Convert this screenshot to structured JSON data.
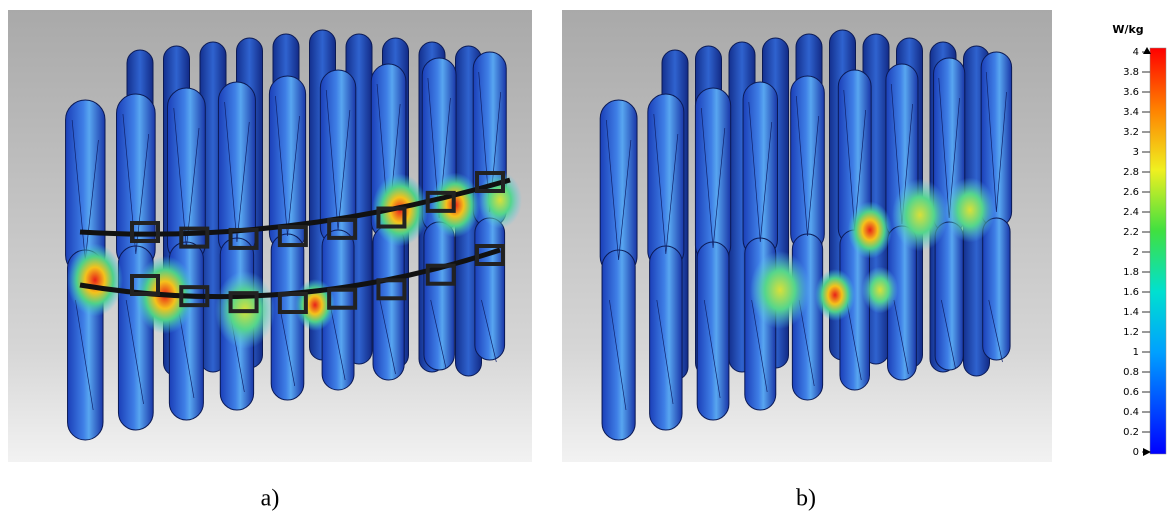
{
  "panels": [
    {
      "caption": "a)"
    },
    {
      "caption": "b)"
    }
  ],
  "colorbar": {
    "title": "W/kg",
    "range": [
      0,
      4
    ],
    "ticks": [
      0,
      0.2,
      0.4,
      0.6,
      0.8,
      1,
      1.2,
      1.4,
      1.6,
      1.8,
      2,
      2.2,
      2.4,
      2.6,
      2.8,
      3,
      3.2,
      3.4,
      3.6,
      3.8,
      4
    ]
  }
}
